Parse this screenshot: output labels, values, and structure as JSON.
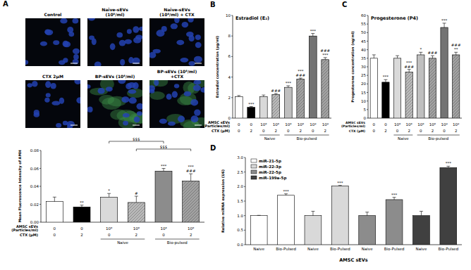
{
  "micrographs": {
    "panel": "A",
    "titles": [
      [
        "Control"
      ],
      [
        "Naïve-sEVs",
        "(10⁸/ml)"
      ],
      [
        "Naïve-sEVs",
        "(10⁸/ml) + CTX"
      ],
      [
        "CTX 2μM"
      ],
      [
        "BP-sEVs (10⁸/ml)"
      ],
      [
        "BP-sEVs (10⁸/ml)",
        "+CTX"
      ]
    ]
  },
  "chart_data": [
    {
      "panel": "A",
      "type": "bar",
      "y_label": "Mean Fluorescence Intensity of AMH",
      "categories": [
        null,
        null,
        null,
        null,
        null,
        null
      ],
      "values": [
        0.023,
        0.017,
        0.028,
        0.022,
        0.057,
        0.046
      ],
      "errors": [
        0.005,
        0.002,
        0.004,
        0.007,
        0.003,
        0.008
      ],
      "colors": [
        "#ffffff",
        "#000000",
        "#d9d9d9",
        "#bfbfbf",
        "#8c8c8c",
        "#a6a6a6"
      ],
      "ylim": [
        0,
        0.08
      ],
      "yticks": [
        {
          "value": 0,
          "label": "0.00"
        },
        {
          "value": 0.02,
          "label": "0.02"
        },
        {
          "value": 0.04,
          "label": "0.04"
        },
        {
          "value": 0.06,
          "label": "0.06"
        },
        {
          "value": 0.08,
          "label": "0.08"
        }
      ],
      "significance": [
        [],
        [
          "**"
        ],
        [
          "*"
        ],
        [
          "#"
        ],
        [
          "***"
        ],
        [
          "###",
          "***"
        ]
      ],
      "brackets": [
        {
          "from": 2,
          "to": 4,
          "label": "$$$"
        },
        {
          "from": 3,
          "to": 5,
          "label": "$$$"
        }
      ],
      "x_table": {
        "rows": [
          {
            "label": "AMSC sEVs",
            "sublabel": "(Particles/ml)",
            "cells": [
              "0",
              "0",
              "10⁸",
              "10⁸",
              "10⁸",
              "10⁸"
            ]
          },
          {
            "label": "CTX (μM)",
            "cells": [
              "0",
              "2",
              "0",
              "2",
              "0",
              "2"
            ]
          }
        ],
        "groups": [
          {
            "label": "Naive",
            "from": 2,
            "to": 3
          },
          {
            "label": "Bio-pulsed",
            "from": 4,
            "to": 5
          }
        ]
      }
    },
    {
      "panel": "B",
      "type": "bar",
      "title": "Estradiol (E₂)",
      "y_label": "Estradiol concentration (pg/ml)",
      "categories": [
        null,
        null,
        null,
        null,
        null,
        null,
        null,
        null
      ],
      "values": [
        2.1,
        1.05,
        2.1,
        2.3,
        3.0,
        3.8,
        8.0,
        5.7
      ],
      "errors": [
        0.1,
        0.08,
        0.15,
        0.1,
        0.15,
        0.1,
        0.25,
        0.2
      ],
      "colors": [
        "#ffffff",
        "#000000",
        "#d9d9d9",
        "#bfbfbf",
        "#bfbfbf",
        "#a6a6a6",
        "#737373",
        "#a6a6a6"
      ],
      "ylim": [
        0,
        10
      ],
      "yticks": [
        0,
        2,
        4,
        6,
        8,
        10
      ],
      "significance": [
        [],
        [
          "***"
        ],
        [],
        [
          "###"
        ],
        [
          "***"
        ],
        [
          "###",
          "***"
        ],
        [
          "***"
        ],
        [
          "***",
          "###"
        ]
      ],
      "x_table": {
        "rows": [
          {
            "label": "AMSC sEVs",
            "sublabel": "(Particles/ml)",
            "cells": [
              "0",
              "0",
              "10⁸",
              "10⁸",
              "10⁸",
              "10⁸",
              "10⁹",
              "10⁹"
            ]
          },
          {
            "label": "CTX (μM)",
            "cells": [
              "0",
              "2",
              "0",
              "2",
              "0",
              "2",
              "0",
              "2"
            ]
          }
        ],
        "groups": [
          {
            "label": "Naive",
            "from": 2,
            "to": 3
          },
          {
            "label": "Bio-pulsed",
            "from": 4,
            "to": 7
          }
        ]
      }
    },
    {
      "panel": "C",
      "type": "bar",
      "title": "Progesterone (P4)",
      "y_label": "Progesterone concentration (ng/ml)",
      "categories": [
        null,
        null,
        null,
        null,
        null,
        null,
        null,
        null
      ],
      "values": [
        35,
        21,
        35,
        27,
        37,
        35,
        53,
        37
      ],
      "errors": [
        2,
        1.5,
        1.5,
        1.5,
        1.5,
        1.5,
        2.5,
        1.5
      ],
      "colors": [
        "#ffffff",
        "#000000",
        "#d9d9d9",
        "#bfbfbf",
        "#bfbfbf",
        "#a6a6a6",
        "#737373",
        "#a6a6a6"
      ],
      "ylim": [
        0,
        60
      ],
      "yticks": [
        0,
        5,
        10,
        15,
        20,
        25,
        30,
        35,
        40,
        45,
        50,
        55,
        60
      ],
      "significance": [
        [],
        [
          "***"
        ],
        [],
        [
          "###",
          "***"
        ],
        [
          "*"
        ],
        [
          "###"
        ],
        [
          "***"
        ],
        [
          "**",
          "###"
        ]
      ],
      "x_table": {
        "rows": [
          {
            "label": "AMSC sEVs",
            "sublabel": "(Particles/ml)",
            "cells": [
              "0",
              "0",
              "10⁸",
              "10⁸",
              "10⁸",
              "10⁸",
              "10⁹",
              "10⁹"
            ]
          },
          {
            "label": "CTX (μM)",
            "cells": [
              "0",
              "2",
              "0",
              "2",
              "0",
              "2",
              "0",
              "2"
            ]
          }
        ],
        "groups": [
          {
            "label": "Naive",
            "from": 2,
            "to": 3
          },
          {
            "label": "Bio-pulsed",
            "from": 4,
            "to": 7
          }
        ]
      }
    },
    {
      "panel": "D",
      "type": "bar",
      "y_label": "Relative miRNA expression (U6)",
      "x_label": "AMSC sEVs",
      "categories": [
        "Naive",
        "Bio-Pulsed",
        "Naive",
        "Bio-Pulsed",
        "Naive",
        "Bio-Pulsed",
        "Naive",
        "Bio-Pulsed"
      ],
      "series": [
        {
          "name": "miR-21-5p",
          "color": "#ffffff",
          "values": [
            1.0,
            1.7,
            null,
            null,
            null,
            null,
            null,
            null
          ],
          "errors": [
            0.01,
            0.05,
            null,
            null,
            null,
            null,
            null,
            null
          ],
          "significance": [
            null,
            "***",
            null,
            null,
            null,
            null,
            null,
            null
          ]
        },
        {
          "name": "miR-22-3p",
          "color": "#d9d9d9",
          "values": [
            null,
            null,
            1.0,
            2.02,
            null,
            null,
            null,
            null
          ],
          "errors": [
            null,
            null,
            0.15,
            0.02,
            null,
            null,
            null,
            null
          ],
          "significance": [
            null,
            null,
            null,
            "***",
            null,
            null,
            null,
            null
          ]
        },
        {
          "name": "miR-22-5p",
          "color": "#8c8c8c",
          "values": [
            null,
            null,
            null,
            null,
            1.0,
            1.55,
            null,
            null
          ],
          "errors": [
            null,
            null,
            null,
            null,
            0.12,
            0.08,
            null,
            null
          ],
          "significance": [
            null,
            null,
            null,
            null,
            null,
            "***",
            null,
            null
          ]
        },
        {
          "name": "miR-199a-5p",
          "color": "#404040",
          "values": [
            null,
            null,
            null,
            null,
            null,
            null,
            1.0,
            2.65
          ],
          "errors": [
            null,
            null,
            null,
            null,
            null,
            null,
            0.15,
            0.05
          ],
          "significance": [
            null,
            null,
            null,
            null,
            null,
            null,
            null,
            "***"
          ]
        }
      ],
      "ylim": [
        0,
        3
      ],
      "yticks": [
        {
          "value": 0,
          "label": "0.0"
        },
        0.5,
        {
          "value": 1,
          "label": "1.0"
        },
        1.5,
        {
          "value": 2,
          "label": "2.0"
        },
        2.5,
        {
          "value": 3,
          "label": "3.0"
        }
      ],
      "legend": "upper left"
    }
  ]
}
